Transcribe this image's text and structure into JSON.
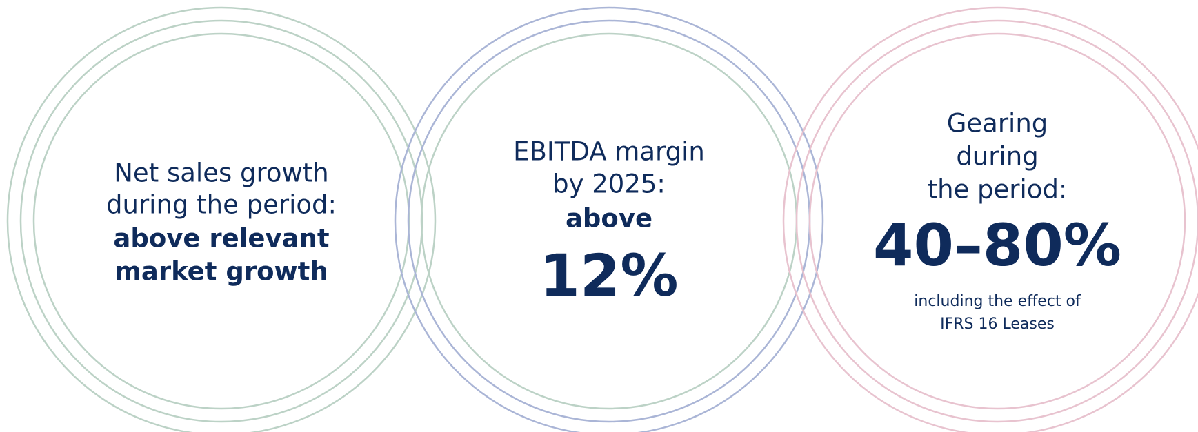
{
  "items": [
    {
      "lines": [
        "Net sales growth",
        "during the period:"
      ],
      "emphasis": [
        "above relevant",
        "market growth"
      ]
    },
    {
      "lines": [
        "EBITDA margin",
        "by 2025:"
      ],
      "emphasis": [
        "above"
      ],
      "figure": "12%"
    },
    {
      "lines": [
        "Gearing",
        "during",
        "the period:"
      ],
      "figure": "40–80%",
      "note": [
        "including the effect of",
        "IFRS 16 Leases"
      ]
    }
  ]
}
